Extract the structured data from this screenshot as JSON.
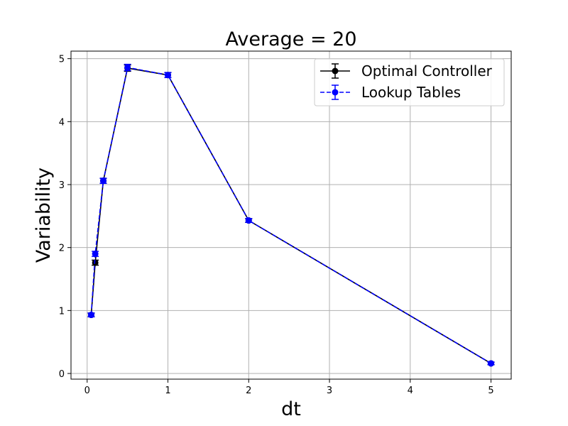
{
  "chart_data": {
    "type": "line",
    "title": "Average = 20",
    "xlabel": "dt",
    "ylabel": "Variability",
    "xlim": [
      -0.2,
      5.25
    ],
    "ylim": [
      -0.09,
      5.12
    ],
    "xticks": [
      0,
      1,
      2,
      3,
      4,
      5
    ],
    "yticks": [
      0,
      1,
      2,
      3,
      4,
      5
    ],
    "grid": true,
    "legend_position": "top-right",
    "series": [
      {
        "name": "Optimal Controller",
        "color": "#000000",
        "linestyle": "solid",
        "marker": "circle",
        "x": [
          0.05,
          0.1,
          0.2,
          0.5,
          1,
          2,
          5
        ],
        "y": [
          0.93,
          1.76,
          3.06,
          4.85,
          4.74,
          2.43,
          0.16
        ],
        "yerr": [
          0.03,
          0.04,
          0.04,
          0.05,
          0.04,
          0.03,
          0.02
        ]
      },
      {
        "name": "Lookup Tables",
        "color": "#0000ff",
        "linestyle": "dashed",
        "marker": "circle",
        "x": [
          0.05,
          0.1,
          0.2,
          0.5,
          1,
          2,
          5
        ],
        "y": [
          0.93,
          1.9,
          3.06,
          4.86,
          4.74,
          2.43,
          0.16
        ],
        "yerr": [
          0.03,
          0.04,
          0.04,
          0.05,
          0.04,
          0.03,
          0.02
        ]
      }
    ]
  }
}
